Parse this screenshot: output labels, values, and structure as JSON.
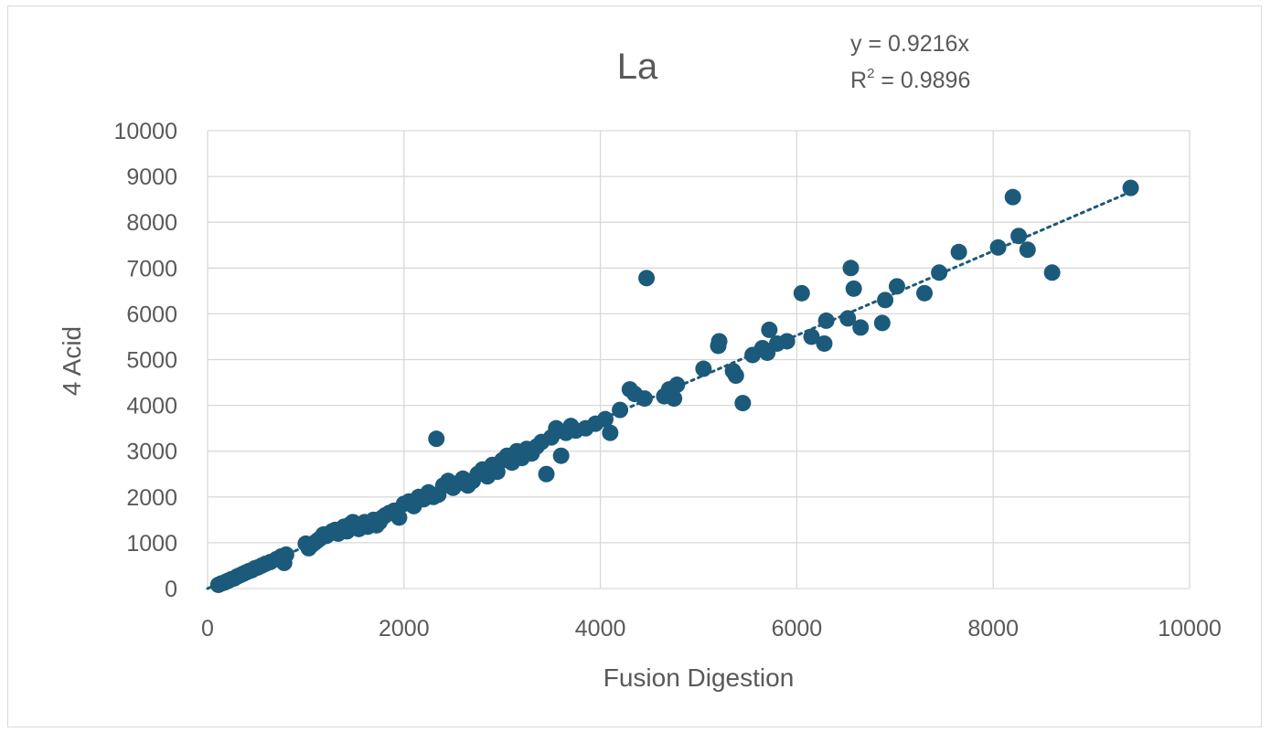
{
  "chart_data": {
    "type": "scatter",
    "title": "La",
    "xlabel": "Fusion Digestion",
    "ylabel": "4 Acid",
    "xlim": [
      0,
      10000
    ],
    "ylim": [
      0,
      10000
    ],
    "xticks": [
      "0",
      "2000",
      "4000",
      "6000",
      "8000",
      "10000"
    ],
    "yticks": [
      "0",
      "1000",
      "2000",
      "3000",
      "4000",
      "5000",
      "6000",
      "7000",
      "8000",
      "9000",
      "10000"
    ],
    "grid": true,
    "legend": "none",
    "marker_color": "#1b5a7a",
    "trendline": {
      "type": "linear-through-origin",
      "slope": 0.9216,
      "equation": "y = 0.9216x",
      "r2_prefix": "R",
      "r2_sup": "2",
      "r2_suffix": " = 0.9896",
      "style": "dotted",
      "x_range": [
        0,
        9400
      ]
    },
    "points": [
      [
        110,
        80
      ],
      [
        140,
        110
      ],
      [
        170,
        130
      ],
      [
        190,
        150
      ],
      [
        210,
        170
      ],
      [
        240,
        200
      ],
      [
        270,
        220
      ],
      [
        300,
        260
      ],
      [
        330,
        290
      ],
      [
        360,
        320
      ],
      [
        390,
        350
      ],
      [
        420,
        380
      ],
      [
        450,
        400
      ],
      [
        480,
        440
      ],
      [
        510,
        460
      ],
      [
        550,
        500
      ],
      [
        590,
        540
      ],
      [
        640,
        580
      ],
      [
        700,
        640
      ],
      [
        750,
        700
      ],
      [
        780,
        560
      ],
      [
        800,
        740
      ],
      [
        1000,
        980
      ],
      [
        1030,
        880
      ],
      [
        1060,
        950
      ],
      [
        1090,
        1000
      ],
      [
        1120,
        1050
      ],
      [
        1150,
        1100
      ],
      [
        1180,
        1180
      ],
      [
        1210,
        1150
      ],
      [
        1240,
        1200
      ],
      [
        1270,
        1250
      ],
      [
        1300,
        1280
      ],
      [
        1330,
        1200
      ],
      [
        1360,
        1300
      ],
      [
        1390,
        1350
      ],
      [
        1420,
        1250
      ],
      [
        1450,
        1400
      ],
      [
        1480,
        1450
      ],
      [
        1510,
        1380
      ],
      [
        1540,
        1300
      ],
      [
        1570,
        1400
      ],
      [
        1600,
        1450
      ],
      [
        1630,
        1350
      ],
      [
        1660,
        1420
      ],
      [
        1690,
        1500
      ],
      [
        1720,
        1380
      ],
      [
        1750,
        1450
      ],
      [
        1780,
        1550
      ],
      [
        1810,
        1600
      ],
      [
        1850,
        1650
      ],
      [
        1900,
        1700
      ],
      [
        1950,
        1550
      ],
      [
        2000,
        1850
      ],
      [
        2050,
        1900
      ],
      [
        2100,
        1800
      ],
      [
        2150,
        2000
      ],
      [
        2200,
        1950
      ],
      [
        2250,
        2100
      ],
      [
        2300,
        2000
      ],
      [
        2330,
        3270
      ],
      [
        2350,
        2050
      ],
      [
        2400,
        2250
      ],
      [
        2450,
        2350
      ],
      [
        2500,
        2200
      ],
      [
        2550,
        2300
      ],
      [
        2600,
        2400
      ],
      [
        2650,
        2250
      ],
      [
        2700,
        2350
      ],
      [
        2750,
        2500
      ],
      [
        2800,
        2600
      ],
      [
        2850,
        2450
      ],
      [
        2900,
        2700
      ],
      [
        2950,
        2550
      ],
      [
        3000,
        2800
      ],
      [
        3050,
        2900
      ],
      [
        3100,
        2750
      ],
      [
        3150,
        3000
      ],
      [
        3200,
        2850
      ],
      [
        3250,
        3050
      ],
      [
        3300,
        2950
      ],
      [
        3350,
        3100
      ],
      [
        3400,
        3200
      ],
      [
        3450,
        2500
      ],
      [
        3500,
        3300
      ],
      [
        3550,
        3500
      ],
      [
        3600,
        2900
      ],
      [
        3650,
        3400
      ],
      [
        3700,
        3550
      ],
      [
        3750,
        3450
      ],
      [
        3850,
        3500
      ],
      [
        3950,
        3600
      ],
      [
        4050,
        3700
      ],
      [
        4100,
        3400
      ],
      [
        4200,
        3900
      ],
      [
        4300,
        4350
      ],
      [
        4350,
        4250
      ],
      [
        4450,
        4150
      ],
      [
        4470,
        6780
      ],
      [
        4650,
        4200
      ],
      [
        4700,
        4350
      ],
      [
        4750,
        4150
      ],
      [
        4780,
        4450
      ],
      [
        5050,
        4800
      ],
      [
        5200,
        5300
      ],
      [
        5210,
        5400
      ],
      [
        5350,
        4750
      ],
      [
        5380,
        4650
      ],
      [
        5450,
        4050
      ],
      [
        5550,
        5100
      ],
      [
        5650,
        5250
      ],
      [
        5700,
        5150
      ],
      [
        5720,
        5650
      ],
      [
        5800,
        5350
      ],
      [
        5900,
        5400
      ],
      [
        6050,
        6450
      ],
      [
        6150,
        5500
      ],
      [
        6280,
        5350
      ],
      [
        6300,
        5850
      ],
      [
        6520,
        5900
      ],
      [
        6550,
        7000
      ],
      [
        6580,
        6550
      ],
      [
        6650,
        5700
      ],
      [
        6870,
        5800
      ],
      [
        6900,
        6300
      ],
      [
        7020,
        6600
      ],
      [
        7300,
        6450
      ],
      [
        7450,
        6900
      ],
      [
        7650,
        7350
      ],
      [
        8050,
        7450
      ],
      [
        8200,
        8550
      ],
      [
        8260,
        7700
      ],
      [
        8350,
        7400
      ],
      [
        8600,
        6900
      ],
      [
        9400,
        8750
      ]
    ]
  }
}
